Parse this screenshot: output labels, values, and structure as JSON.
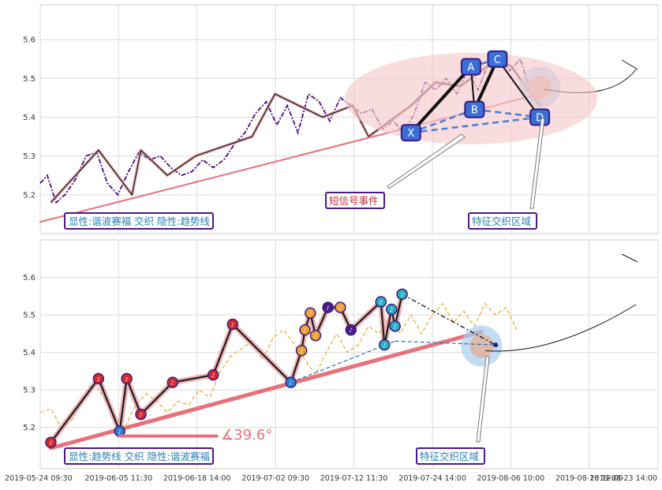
{
  "chart_data": [
    {
      "type": "line",
      "panel": "top",
      "y_ticks": [
        5.2,
        5.3,
        5.4,
        5.5,
        5.6
      ],
      "ylim": [
        5.1,
        5.69
      ],
      "grid": true,
      "price_series": [
        [
          0.0,
          5.23
        ],
        [
          0.4,
          5.25
        ],
        [
          0.9,
          5.18
        ],
        [
          1.4,
          5.2
        ],
        [
          2.0,
          5.24
        ],
        [
          2.6,
          5.3
        ],
        [
          3.2,
          5.31
        ],
        [
          3.8,
          5.23
        ],
        [
          4.4,
          5.2
        ],
        [
          5.0,
          5.26
        ],
        [
          5.6,
          5.31
        ],
        [
          6.2,
          5.29
        ],
        [
          6.8,
          5.3
        ],
        [
          7.4,
          5.27
        ],
        [
          8.0,
          5.25
        ],
        [
          8.6,
          5.26
        ],
        [
          9.2,
          5.29
        ],
        [
          9.8,
          5.27
        ],
        [
          10.4,
          5.29
        ],
        [
          11.0,
          5.33
        ],
        [
          11.6,
          5.36
        ],
        [
          12.2,
          5.41
        ],
        [
          12.8,
          5.44
        ],
        [
          13.4,
          5.38
        ],
        [
          14.0,
          5.43
        ],
        [
          14.6,
          5.36
        ],
        [
          15.2,
          5.46
        ],
        [
          15.8,
          5.44
        ],
        [
          16.4,
          5.39
        ],
        [
          17.0,
          5.45
        ],
        [
          17.6,
          5.43
        ],
        [
          18.2,
          5.41
        ],
        [
          18.8,
          5.42
        ],
        [
          19.4,
          5.37
        ],
        [
          20.0,
          5.39
        ],
        [
          20.6,
          5.36
        ],
        [
          21.2,
          5.41
        ],
        [
          21.8,
          5.49
        ],
        [
          22.4,
          5.47
        ],
        [
          23.0,
          5.5
        ],
        [
          23.6,
          5.46
        ],
        [
          24.2,
          5.52
        ],
        [
          24.8,
          5.47
        ],
        [
          25.4,
          5.54
        ],
        [
          26.0,
          5.55
        ],
        [
          26.6,
          5.52
        ],
        [
          27.2,
          5.55
        ],
        [
          27.8,
          5.46
        ],
        [
          28.4,
          5.43
        ]
      ],
      "wave_points": [
        [
          0.6,
          5.18
        ],
        [
          3.3,
          5.315
        ],
        [
          5.2,
          5.2
        ],
        [
          5.7,
          5.315
        ],
        [
          7.2,
          5.25
        ],
        [
          8.8,
          5.3
        ],
        [
          12.0,
          5.35
        ],
        [
          13.3,
          5.46
        ],
        [
          16.0,
          5.4
        ],
        [
          17.7,
          5.43
        ],
        [
          18.6,
          5.35
        ],
        [
          21.0,
          5.43
        ],
        [
          22.4,
          5.49
        ],
        [
          23.8,
          5.48
        ],
        [
          25.3,
          5.53
        ],
        [
          26.0,
          5.55
        ],
        [
          26.7,
          5.53
        ],
        [
          27.8,
          5.46
        ],
        [
          28.3,
          5.43
        ]
      ],
      "trend_line": [
        [
          0.0,
          5.13
        ],
        [
          28.3,
          5.46
        ]
      ],
      "xabcd": [
        {
          "label": "X",
          "x": 21.0,
          "y": 5.36
        },
        {
          "label": "A",
          "x": 24.4,
          "y": 5.53
        },
        {
          "label": "B",
          "x": 24.6,
          "y": 5.42
        },
        {
          "label": "C",
          "x": 25.9,
          "y": 5.55
        },
        {
          "label": "D",
          "x": 28.3,
          "y": 5.4
        }
      ],
      "annotations": [
        "短信号事件",
        "特征交织区域"
      ],
      "legend_text": "显性:谐波赛福 交织 隐性:趋势线"
    },
    {
      "type": "line",
      "panel": "bottom",
      "y_ticks": [
        5.2,
        5.3,
        5.4,
        5.5,
        5.6
      ],
      "ylim": [
        5.09,
        5.7
      ],
      "grid": true,
      "x_ticks": [
        "2019-05-24 09:30",
        "2019-06-05 11:30",
        "2019-06-18 14:00",
        "2019-07-02 09:30",
        "2019-07-12 11:30",
        "2019-07-24 14:00",
        "2019-08-06 10:00",
        "2019-08-16 12:00",
        "2019-08-23 14:00"
      ],
      "price_series": [
        [
          0.0,
          5.24
        ],
        [
          0.6,
          5.25
        ],
        [
          1.2,
          5.2
        ],
        [
          1.8,
          5.22
        ],
        [
          2.4,
          5.27
        ],
        [
          3.0,
          5.32
        ],
        [
          3.6,
          5.28
        ],
        [
          4.2,
          5.23
        ],
        [
          4.8,
          5.2
        ],
        [
          5.4,
          5.26
        ],
        [
          6.0,
          5.29
        ],
        [
          6.6,
          5.27
        ],
        [
          7.2,
          5.24
        ],
        [
          7.8,
          5.27
        ],
        [
          8.4,
          5.26
        ],
        [
          9.0,
          5.3
        ],
        [
          9.6,
          5.28
        ],
        [
          10.2,
          5.35
        ],
        [
          10.8,
          5.39
        ],
        [
          11.4,
          5.41
        ],
        [
          12.0,
          5.43
        ],
        [
          12.6,
          5.38
        ],
        [
          13.2,
          5.44
        ],
        [
          13.8,
          5.46
        ],
        [
          14.4,
          5.42
        ],
        [
          15.0,
          5.38
        ],
        [
          15.6,
          5.34
        ],
        [
          16.2,
          5.4
        ],
        [
          16.8,
          5.45
        ],
        [
          17.4,
          5.4
        ],
        [
          18.0,
          5.42
        ],
        [
          18.6,
          5.47
        ],
        [
          19.2,
          5.45
        ],
        [
          19.8,
          5.5
        ],
        [
          20.4,
          5.45
        ],
        [
          21.0,
          5.5
        ],
        [
          21.6,
          5.45
        ],
        [
          22.2,
          5.5
        ],
        [
          22.8,
          5.53
        ],
        [
          23.4,
          5.48
        ],
        [
          24.0,
          5.51
        ],
        [
          24.6,
          5.47
        ],
        [
          25.2,
          5.53
        ],
        [
          25.8,
          5.5
        ],
        [
          26.4,
          5.52
        ],
        [
          27.0,
          5.46
        ]
      ],
      "wave_points": [
        [
          0.6,
          5.16
        ],
        [
          3.3,
          5.33
        ],
        [
          4.5,
          5.19
        ],
        [
          4.9,
          5.33
        ],
        [
          5.7,
          5.235
        ],
        [
          7.5,
          5.32
        ],
        [
          9.8,
          5.34
        ],
        [
          10.9,
          5.475
        ],
        [
          14.2,
          5.32
        ],
        [
          14.8,
          5.405
        ],
        [
          15.0,
          5.46
        ],
        [
          15.3,
          5.505
        ],
        [
          15.6,
          5.445
        ],
        [
          16.3,
          5.52
        ],
        [
          17.0,
          5.52
        ],
        [
          17.6,
          5.46
        ],
        [
          19.3,
          5.535
        ],
        [
          19.5,
          5.42
        ],
        [
          19.9,
          5.515
        ],
        [
          20.1,
          5.47
        ],
        [
          20.5,
          5.555
        ]
      ],
      "trend_line": [
        [
          0.6,
          5.145
        ],
        [
          25.0,
          5.455
        ]
      ],
      "angle_label": "∡39.6°",
      "annotations": [
        "特征交织区域"
      ],
      "legend_text": "显性:趋势线 交织 隐性:谐波赛福"
    }
  ],
  "colors": {
    "trend": "#e8707a",
    "price_top": "#4b0a82",
    "price_bottom": "#e8b040",
    "wave": "#1a1a1a",
    "pattern_fill": "#f4c9cc",
    "pattern_dash": "#4a7bd8",
    "node_fill": "#3a6fd8",
    "legend_border": "#4b1a82",
    "legend_text": "#2a7fb0",
    "annot_text": "#c0303a",
    "grid": "#d9d9d9"
  }
}
